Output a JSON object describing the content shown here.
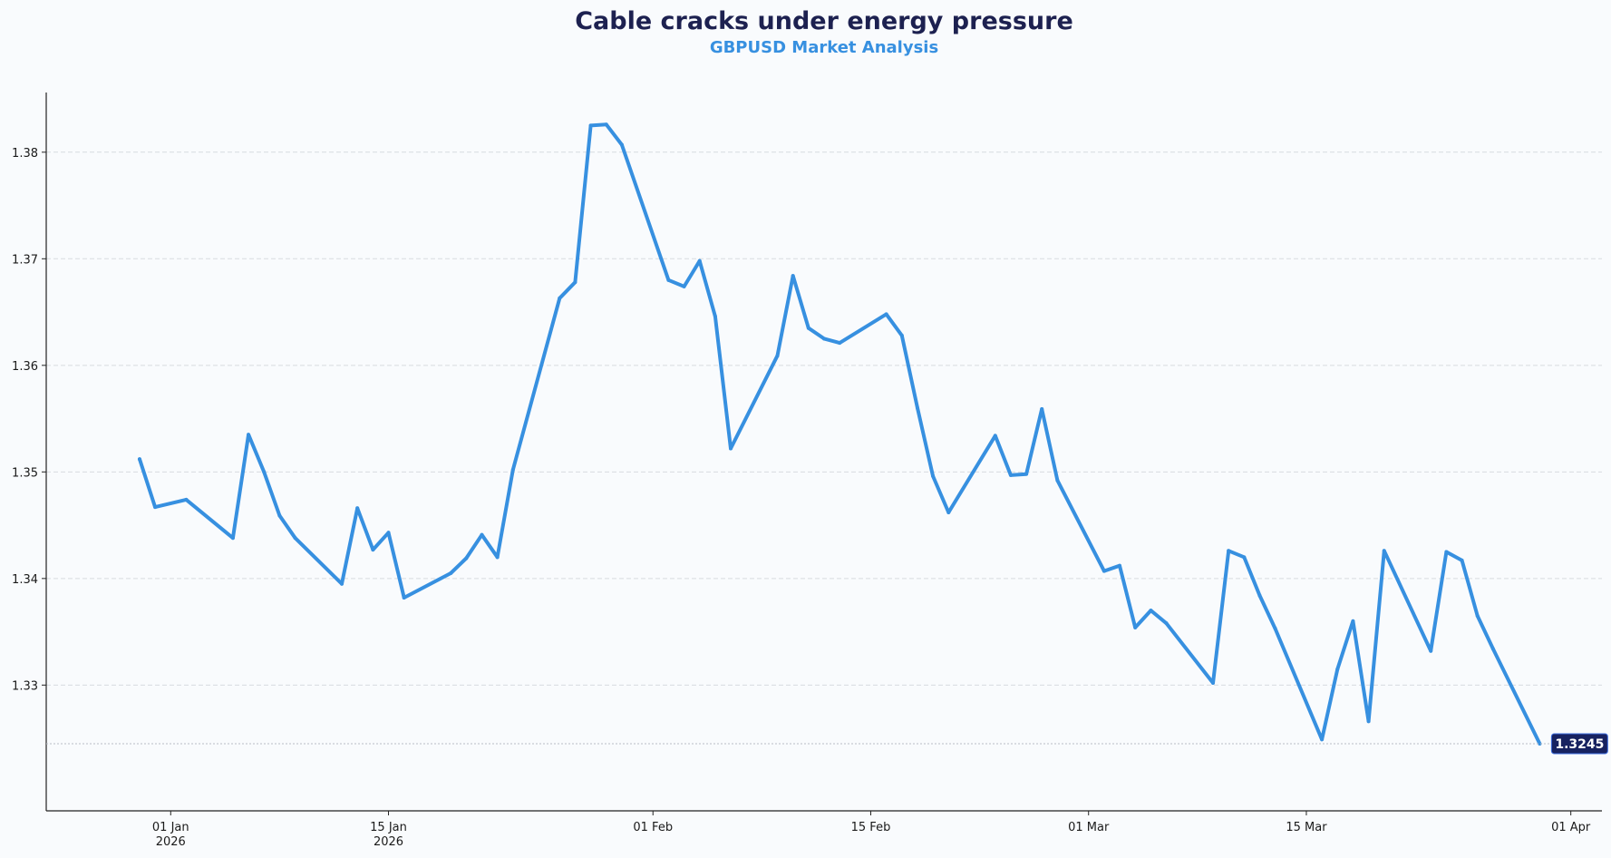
{
  "chart_data": {
    "type": "line",
    "title": "Cable cracks under energy pressure",
    "subtitle": "GBPUSD Market Analysis",
    "xlabel": "",
    "ylabel": "",
    "series": [
      {
        "name": "GBPUSD",
        "x": [
          "2025-12-30",
          "2025-12-31",
          "2026-01-02",
          "2026-01-05",
          "2026-01-06",
          "2026-01-07",
          "2026-01-08",
          "2026-01-09",
          "2026-01-12",
          "2026-01-13",
          "2026-01-14",
          "2026-01-15",
          "2026-01-16",
          "2026-01-19",
          "2026-01-20",
          "2026-01-21",
          "2026-01-22",
          "2026-01-23",
          "2026-01-26",
          "2026-01-27",
          "2026-01-28",
          "2026-01-29",
          "2026-01-30",
          "2026-02-02",
          "2026-02-03",
          "2026-02-04",
          "2026-02-05",
          "2026-02-06",
          "2026-02-09",
          "2026-02-10",
          "2026-02-11",
          "2026-02-12",
          "2026-02-13",
          "2026-02-16",
          "2026-02-17",
          "2026-02-18",
          "2026-02-19",
          "2026-02-20",
          "2026-02-23",
          "2026-02-24",
          "2026-02-25",
          "2026-02-26",
          "2026-02-27",
          "2026-03-02",
          "2026-03-03",
          "2026-03-04",
          "2026-03-05",
          "2026-03-06",
          "2026-03-09",
          "2026-03-10",
          "2026-03-11",
          "2026-03-12",
          "2026-03-13",
          "2026-03-16",
          "2026-03-17",
          "2026-03-18",
          "2026-03-19",
          "2026-03-20",
          "2026-03-23",
          "2026-03-24",
          "2026-03-25",
          "2026-03-26",
          "2026-03-27",
          "2026-03-30"
        ],
        "values": [
          1.3512,
          1.3467,
          1.3474,
          1.3438,
          1.3535,
          1.35,
          1.3459,
          1.3438,
          1.3395,
          1.3466,
          1.3427,
          1.3443,
          1.3382,
          1.3405,
          1.3419,
          1.3441,
          1.342,
          1.3502,
          1.3663,
          1.3678,
          1.3825,
          1.3826,
          1.3807,
          1.368,
          1.3674,
          1.3698,
          1.3646,
          1.3522,
          1.3609,
          1.3684,
          1.3635,
          1.3625,
          1.3621,
          1.3648,
          1.3628,
          1.356,
          1.3496,
          1.3462,
          1.3534,
          1.3497,
          1.3498,
          1.3559,
          1.3492,
          1.3407,
          1.3412,
          1.3354,
          1.337,
          1.3358,
          1.3302,
          1.3426,
          1.342,
          1.3384,
          1.3353,
          1.3249,
          1.3315,
          1.336,
          1.3266,
          1.3426,
          1.3332,
          1.3425,
          1.3417,
          1.3365,
          1.3334,
          1.3245
        ],
        "color": "#3790e0"
      }
    ],
    "xticks": [
      {
        "date": "2026-01-01",
        "label": "01 Jan",
        "sublabel": "2026"
      },
      {
        "date": "2026-01-15",
        "label": "15 Jan",
        "sublabel": "2026"
      },
      {
        "date": "2026-02-01",
        "label": "01 Feb",
        "sublabel": ""
      },
      {
        "date": "2026-02-15",
        "label": "15 Feb",
        "sublabel": ""
      },
      {
        "date": "2026-03-01",
        "label": "01 Mar",
        "sublabel": ""
      },
      {
        "date": "2026-03-15",
        "label": "15 Mar",
        "sublabel": ""
      },
      {
        "date": "2026-04-01",
        "label": "01 Apr",
        "sublabel": ""
      }
    ],
    "yticks": [
      "1.33",
      "1.34",
      "1.35",
      "1.36",
      "1.37",
      "1.38"
    ],
    "xlim": [
      "2025-12-24",
      "2026-04-03"
    ],
    "ylim": [
      1.3182,
      1.3856
    ],
    "grid": true,
    "last_value_label": "1.3245",
    "colors": {
      "line": "#3790e0",
      "title": "#1d2150",
      "subtitle": "#3790e0",
      "badge": "#172260",
      "grid": "#d7dbe0",
      "background": "#f9fbfd"
    }
  }
}
